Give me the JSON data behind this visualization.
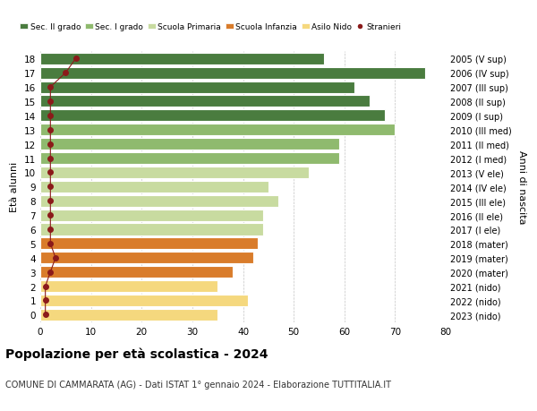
{
  "ages": [
    18,
    17,
    16,
    15,
    14,
    13,
    12,
    11,
    10,
    9,
    8,
    7,
    6,
    5,
    4,
    3,
    2,
    1,
    0
  ],
  "values": [
    56,
    76,
    62,
    65,
    68,
    70,
    59,
    59,
    53,
    45,
    47,
    44,
    44,
    43,
    42,
    38,
    35,
    41,
    35
  ],
  "stranieri_x": [
    7,
    5,
    2,
    2,
    2,
    2,
    2,
    2,
    2,
    2,
    2,
    2,
    2,
    2,
    3,
    2,
    1,
    1,
    1
  ],
  "right_labels": [
    "2005 (V sup)",
    "2006 (IV sup)",
    "2007 (III sup)",
    "2008 (II sup)",
    "2009 (I sup)",
    "2010 (III med)",
    "2011 (II med)",
    "2012 (I med)",
    "2013 (V ele)",
    "2014 (IV ele)",
    "2015 (III ele)",
    "2016 (II ele)",
    "2017 (I ele)",
    "2018 (mater)",
    "2019 (mater)",
    "2020 (mater)",
    "2021 (nido)",
    "2022 (nido)",
    "2023 (nido)"
  ],
  "bar_colors": [
    "#4a7c3f",
    "#4a7c3f",
    "#4a7c3f",
    "#4a7c3f",
    "#4a7c3f",
    "#8fba6e",
    "#8fba6e",
    "#8fba6e",
    "#c8dba0",
    "#c8dba0",
    "#c8dba0",
    "#c8dba0",
    "#c8dba0",
    "#d97c2b",
    "#d97c2b",
    "#d97c2b",
    "#f5d87e",
    "#f5d87e",
    "#f5d87e"
  ],
  "legend_labels": [
    "Sec. II grado",
    "Sec. I grado",
    "Scuola Primaria",
    "Scuola Infanzia",
    "Asilo Nido",
    "Stranieri"
  ],
  "legend_colors": [
    "#4a7c3f",
    "#8fba6e",
    "#c8dba0",
    "#d97c2b",
    "#f5d87e",
    "#a00000"
  ],
  "title": "Popolazione per età scolastica - 2024",
  "subtitle": "COMUNE DI CAMMARATA (AG) - Dati ISTAT 1° gennaio 2024 - Elaborazione TUTTITALIA.IT",
  "ylabel_left": "Età alunni",
  "ylabel_right": "Anni di nascita",
  "xlim": [
    0,
    80
  ],
  "xticks": [
    0,
    10,
    20,
    30,
    40,
    50,
    60,
    70,
    80
  ],
  "bg_color": "#ffffff",
  "stranieri_color": "#8b1a1a",
  "bar_height": 0.82
}
